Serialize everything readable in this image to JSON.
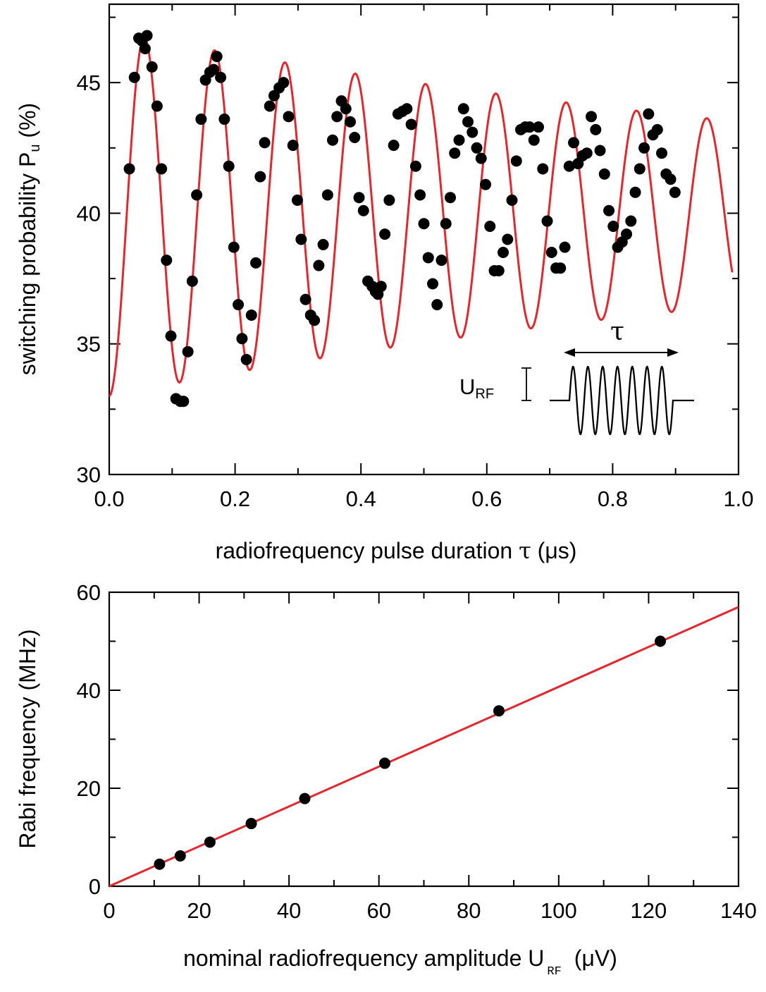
{
  "colors": {
    "data_points": "#000000",
    "fit_curve": "#e0282e",
    "axes": "#000000",
    "background": "#ffffff"
  },
  "chart_data": [
    {
      "type": "scatter",
      "panel": "top",
      "ylabel_main": "switching probability P",
      "ylabel_sub": "u",
      "ylabel_tail": " (%)",
      "xlabel_main": "radiofrequency pulse duration ",
      "xlabel_symbol": "τ",
      "xlabel_unit": " (μs)",
      "xlim": [
        0.0,
        1.0
      ],
      "ylim": [
        30,
        48
      ],
      "xticks": [
        0.0,
        0.2,
        0.4,
        0.6,
        0.8,
        1.0
      ],
      "xtick_labels": [
        "0.0",
        "0.2",
        "0.4",
        "0.6",
        "0.8",
        "1.0"
      ],
      "yticks": [
        30,
        35,
        40,
        45
      ],
      "ytick_labels": [
        "30",
        "35",
        "40",
        "45"
      ],
      "inset": {
        "tau_label": "τ",
        "amp_label": "U",
        "amp_sub": "RF"
      },
      "fit": {
        "model": "damped cosine",
        "offset": 40.0,
        "amplitude": 7.0,
        "decay_time_us": 1.45,
        "frequency_MHz": 8.95
      },
      "series": [
        {
          "marker": "circle",
          "points": [
            [
              0.032,
              41.7
            ],
            [
              0.04,
              45.2
            ],
            [
              0.047,
              46.7
            ],
            [
              0.052,
              46.6
            ],
            [
              0.057,
              46.3
            ],
            [
              0.06,
              46.8
            ],
            [
              0.068,
              45.6
            ],
            [
              0.076,
              44.1
            ],
            [
              0.083,
              41.7
            ],
            [
              0.091,
              38.2
            ],
            [
              0.098,
              35.3
            ],
            [
              0.106,
              32.9
            ],
            [
              0.113,
              32.8
            ],
            [
              0.118,
              32.8
            ],
            [
              0.125,
              34.7
            ],
            [
              0.132,
              37.4
            ],
            [
              0.139,
              40.7
            ],
            [
              0.146,
              43.6
            ],
            [
              0.153,
              45.1
            ],
            [
              0.16,
              45.4
            ],
            [
              0.166,
              45.5
            ],
            [
              0.171,
              46.0
            ],
            [
              0.177,
              45.2
            ],
            [
              0.183,
              43.6
            ],
            [
              0.19,
              41.8
            ],
            [
              0.198,
              38.7
            ],
            [
              0.205,
              36.5
            ],
            [
              0.211,
              35.2
            ],
            [
              0.218,
              34.4
            ],
            [
              0.226,
              36.1
            ],
            [
              0.233,
              38.1
            ],
            [
              0.24,
              41.4
            ],
            [
              0.247,
              42.7
            ],
            [
              0.255,
              44.1
            ],
            [
              0.262,
              44.5
            ],
            [
              0.27,
              44.8
            ],
            [
              0.277,
              45.0
            ],
            [
              0.285,
              43.7
            ],
            [
              0.292,
              42.6
            ],
            [
              0.299,
              40.5
            ],
            [
              0.305,
              39.0
            ],
            [
              0.312,
              36.7
            ],
            [
              0.32,
              36.1
            ],
            [
              0.326,
              35.9
            ],
            [
              0.333,
              38.0
            ],
            [
              0.34,
              38.8
            ],
            [
              0.347,
              40.7
            ],
            [
              0.355,
              42.8
            ],
            [
              0.362,
              43.7
            ],
            [
              0.369,
              44.3
            ],
            [
              0.376,
              44.0
            ],
            [
              0.383,
              43.5
            ],
            [
              0.39,
              42.9
            ],
            [
              0.397,
              40.6
            ],
            [
              0.404,
              40.1
            ],
            [
              0.411,
              37.4
            ],
            [
              0.418,
              37.2
            ],
            [
              0.423,
              37.0
            ],
            [
              0.427,
              36.9
            ],
            [
              0.432,
              37.2
            ],
            [
              0.438,
              39.2
            ],
            [
              0.445,
              40.5
            ],
            [
              0.452,
              42.6
            ],
            [
              0.459,
              43.8
            ],
            [
              0.466,
              43.9
            ],
            [
              0.473,
              44.0
            ],
            [
              0.48,
              43.4
            ],
            [
              0.487,
              41.8
            ],
            [
              0.494,
              40.7
            ],
            [
              0.5,
              39.6
            ],
            [
              0.507,
              38.3
            ],
            [
              0.514,
              37.3
            ],
            [
              0.521,
              36.5
            ],
            [
              0.528,
              38.2
            ],
            [
              0.535,
              39.6
            ],
            [
              0.542,
              40.6
            ],
            [
              0.549,
              42.3
            ],
            [
              0.556,
              42.8
            ],
            [
              0.563,
              44.0
            ],
            [
              0.57,
              43.5
            ],
            [
              0.577,
              43.1
            ],
            [
              0.584,
              42.5
            ],
            [
              0.591,
              42.1
            ],
            [
              0.598,
              41.1
            ],
            [
              0.605,
              39.5
            ],
            [
              0.612,
              37.8
            ],
            [
              0.619,
              37.8
            ],
            [
              0.626,
              38.5
            ],
            [
              0.633,
              39.0
            ],
            [
              0.64,
              40.5
            ],
            [
              0.647,
              42.0
            ],
            [
              0.654,
              43.2
            ],
            [
              0.661,
              43.3
            ],
            [
              0.668,
              43.3
            ],
            [
              0.675,
              42.8
            ],
            [
              0.682,
              43.3
            ],
            [
              0.689,
              41.7
            ],
            [
              0.696,
              39.7
            ],
            [
              0.703,
              38.5
            ],
            [
              0.71,
              37.9
            ],
            [
              0.717,
              37.9
            ],
            [
              0.724,
              38.7
            ],
            [
              0.731,
              41.8
            ],
            [
              0.738,
              42.7
            ],
            [
              0.745,
              41.9
            ],
            [
              0.752,
              42.2
            ],
            [
              0.759,
              42.3
            ],
            [
              0.766,
              43.7
            ],
            [
              0.773,
              43.2
            ],
            [
              0.78,
              42.4
            ],
            [
              0.787,
              41.5
            ],
            [
              0.794,
              40.1
            ],
            [
              0.801,
              39.5
            ],
            [
              0.808,
              38.7
            ],
            [
              0.815,
              38.9
            ],
            [
              0.822,
              39.2
            ],
            [
              0.829,
              39.7
            ],
            [
              0.836,
              40.8
            ],
            [
              0.843,
              41.7
            ],
            [
              0.85,
              42.5
            ],
            [
              0.857,
              43.8
            ],
            [
              0.864,
              43.0
            ],
            [
              0.871,
              43.2
            ],
            [
              0.878,
              42.3
            ],
            [
              0.885,
              41.5
            ],
            [
              0.892,
              41.3
            ],
            [
              0.899,
              40.8
            ]
          ]
        }
      ]
    },
    {
      "type": "scatter",
      "panel": "bottom",
      "ylabel": "Rabi frequency (MHz)",
      "xlabel_main": "nominal radiofrequency amplitude U",
      "xlabel_sub": "RF",
      "xlabel_unit": "(μV)",
      "xlim": [
        0,
        140
      ],
      "ylim": [
        0,
        60
      ],
      "xticks": [
        0,
        20,
        40,
        60,
        80,
        100,
        120,
        140
      ],
      "xtick_labels": [
        "0",
        "20",
        "40",
        "60",
        "80",
        "100",
        "120",
        "140"
      ],
      "yticks": [
        0,
        20,
        40,
        60
      ],
      "ytick_labels": [
        "0",
        "20",
        "40",
        "60"
      ],
      "fit": {
        "model": "linear",
        "slope": 0.407,
        "intercept": 0
      },
      "series": [
        {
          "marker": "circle",
          "points": [
            [
              11.2,
              4.5
            ],
            [
              15.8,
              6.2
            ],
            [
              22.4,
              9.0
            ],
            [
              31.6,
              12.8
            ],
            [
              43.5,
              17.9
            ],
            [
              61.3,
              25.1
            ],
            [
              86.7,
              35.8
            ],
            [
              122.6,
              50.0
            ]
          ]
        }
      ]
    }
  ]
}
